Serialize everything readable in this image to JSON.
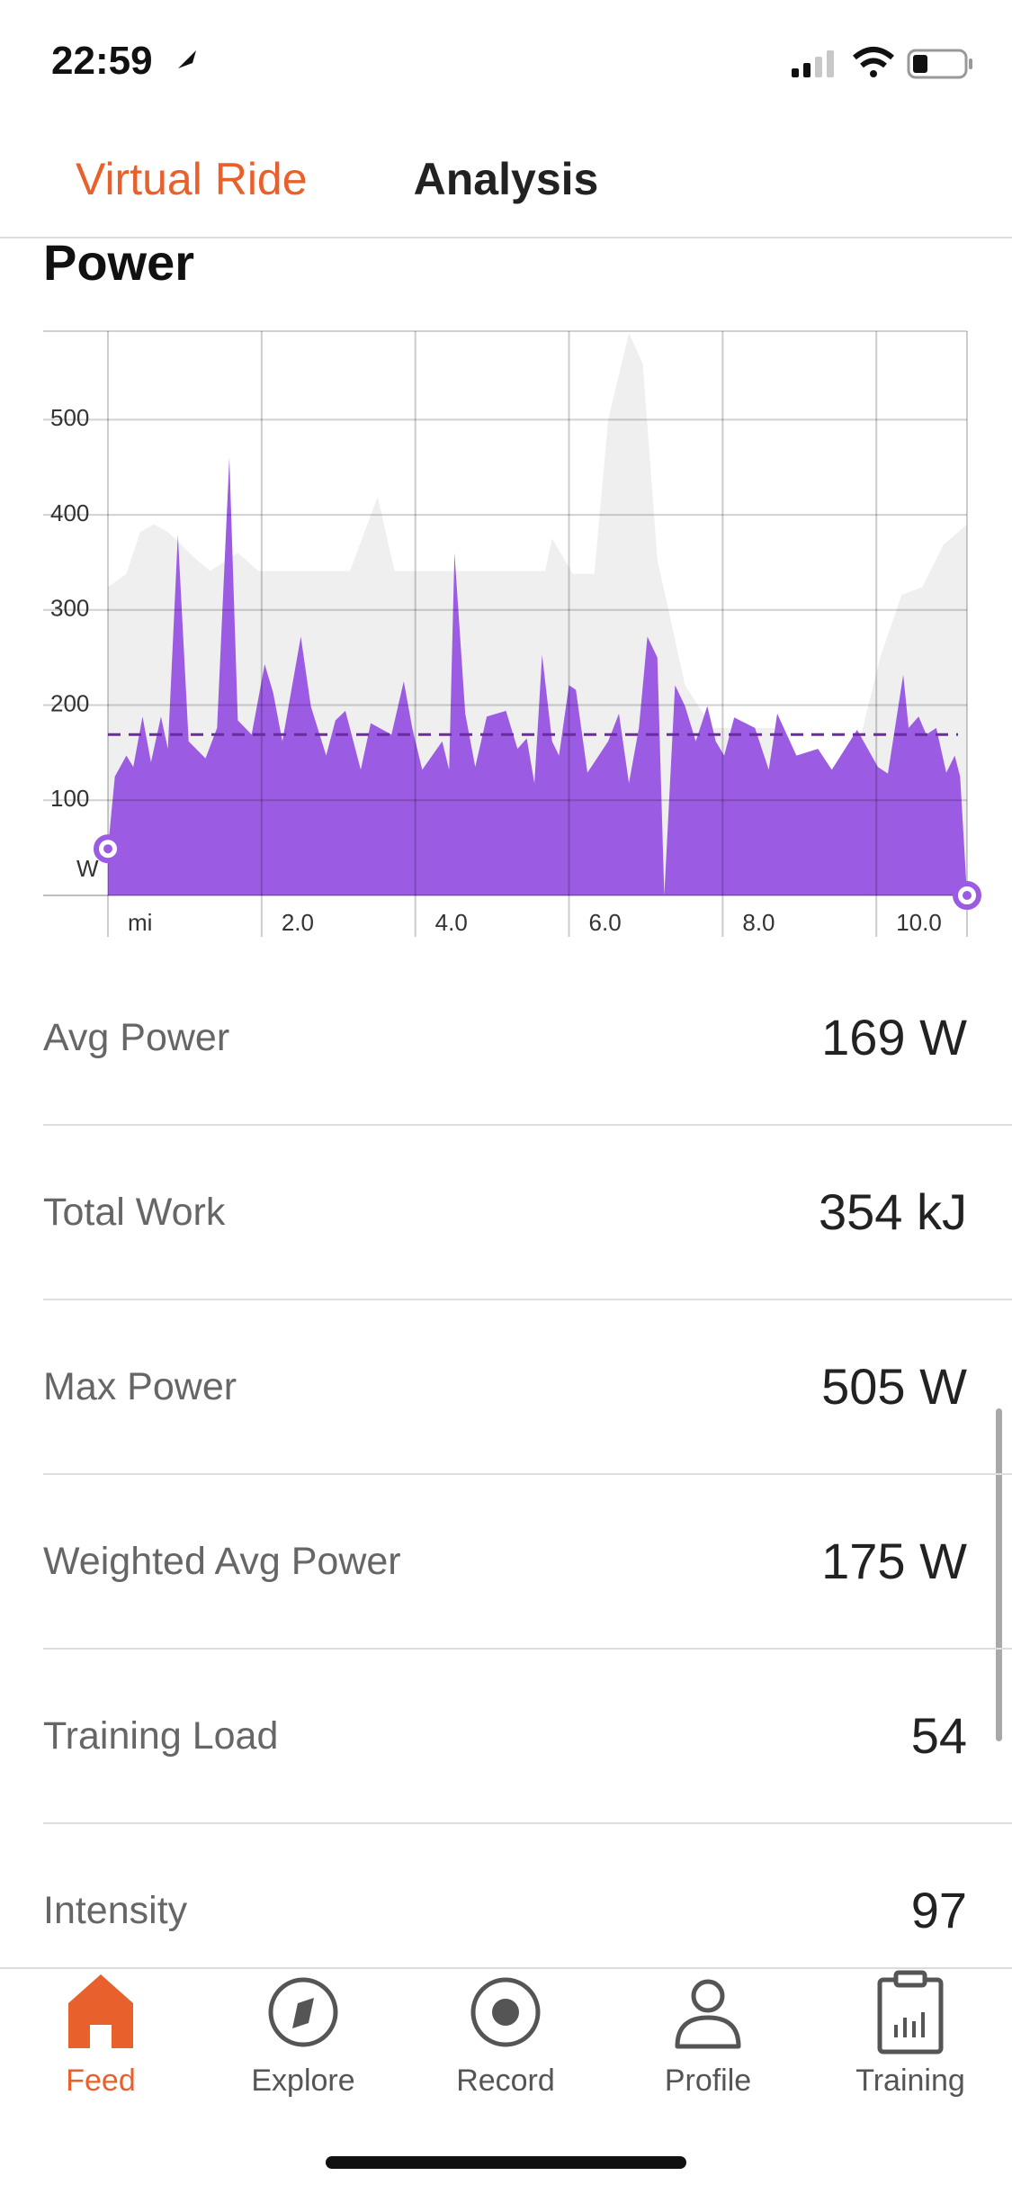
{
  "status_bar": {
    "time": "22:59"
  },
  "nav": {
    "back": "Virtual Ride",
    "title": "Analysis"
  },
  "section_title": "Power",
  "chart_data": {
    "type": "area",
    "x": [
      0.0,
      0.09,
      0.24,
      0.33,
      0.45,
      0.56,
      0.69,
      0.78,
      0.91,
      1.05,
      1.27,
      1.42,
      1.58,
      1.69,
      1.87,
      2.04,
      2.15,
      2.27,
      2.51,
      2.64,
      2.84,
      2.96,
      3.09,
      3.29,
      3.42,
      3.69,
      3.85,
      3.96,
      4.09,
      4.35,
      4.44,
      4.51,
      4.65,
      4.78,
      4.93,
      5.18,
      5.33,
      5.45,
      5.55,
      5.65,
      5.78,
      5.87,
      6.0,
      6.09,
      6.24,
      6.51,
      6.65,
      6.78,
      6.91,
      7.02,
      7.15,
      7.24,
      7.38,
      7.51,
      7.65,
      7.8,
      7.91,
      8.02,
      8.15,
      8.42,
      8.6,
      8.71,
      8.96,
      9.24,
      9.42,
      9.75,
      10.02,
      10.15,
      10.35,
      10.42,
      10.55,
      10.65,
      10.78,
      10.91,
      11.02,
      11.09,
      11.18
    ],
    "values": [
      49,
      125,
      147,
      135,
      188,
      140,
      188,
      154,
      379,
      162,
      144,
      176,
      460,
      184,
      169,
      243,
      213,
      162,
      272,
      199,
      147,
      184,
      194,
      132,
      181,
      169,
      225,
      176,
      132,
      162,
      132,
      360,
      191,
      135,
      188,
      194,
      154,
      165,
      118,
      253,
      162,
      147,
      221,
      216,
      129,
      162,
      191,
      118,
      176,
      272,
      250,
      0,
      221,
      199,
      162,
      199,
      162,
      147,
      187,
      176,
      132,
      191,
      147,
      154,
      132,
      174,
      135,
      128,
      232,
      176,
      188,
      169,
      176,
      129,
      147,
      125,
      0
    ],
    "color": "#9b5ce3",
    "background": {
      "x": [
        0,
        0.24,
        0.42,
        0.6,
        0.78,
        1.15,
        1.33,
        1.69,
        1.96,
        3.15,
        3.51,
        3.73,
        4.05,
        5.69,
        5.78,
        6.05,
        6.33,
        6.51,
        6.78,
        6.96,
        7.15,
        7.51,
        7.87,
        8.78,
        9.33,
        9.69,
        10.05,
        10.33,
        10.6,
        10.87,
        11.18
      ],
      "values": [
        324,
        338,
        382,
        390,
        382,
        353,
        341,
        360,
        341,
        341,
        419,
        341,
        341,
        341,
        375,
        338,
        338,
        500,
        591,
        559,
        353,
        221,
        176,
        176,
        88,
        132,
        250,
        316,
        324,
        368,
        390
      ],
      "color": "#efefef"
    },
    "average": 169,
    "average_color": "#6a2c9e",
    "y_unit": "W",
    "xlim": [
      0,
      11.18
    ],
    "ylim": [
      0,
      593
    ],
    "xticks": [
      {
        "value": 0,
        "label": "mi"
      },
      {
        "value": 2,
        "label": "2.0"
      },
      {
        "value": 4,
        "label": "4.0"
      },
      {
        "value": 6,
        "label": "6.0"
      },
      {
        "value": 8,
        "label": "8.0"
      },
      {
        "value": 10,
        "label": "10.0"
      }
    ],
    "yticks": [
      100,
      200,
      300,
      400,
      500
    ],
    "grid": true
  },
  "stats": [
    {
      "label": "Avg Power",
      "value": "169 W"
    },
    {
      "label": "Total Work",
      "value": "354 kJ"
    },
    {
      "label": "Max Power",
      "value": "505 W"
    },
    {
      "label": "Weighted Avg Power",
      "value": "175 W"
    },
    {
      "label": "Training Load",
      "value": "54"
    },
    {
      "label": "Intensity",
      "value": "97"
    }
  ],
  "tabs": [
    {
      "label": "Feed",
      "active": true
    },
    {
      "label": "Explore",
      "active": false
    },
    {
      "label": "Record",
      "active": false
    },
    {
      "label": "Profile",
      "active": false
    },
    {
      "label": "Training",
      "active": false
    }
  ]
}
